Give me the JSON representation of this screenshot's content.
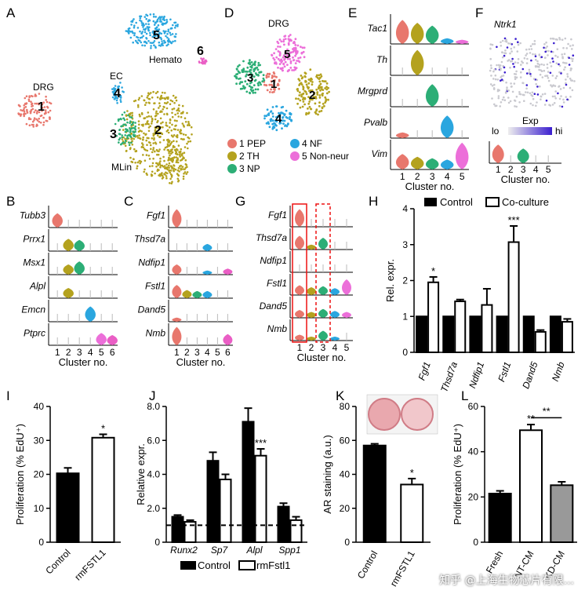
{
  "colors": {
    "c1": "#e8776d",
    "c2": "#b4a21e",
    "c3": "#2cae76",
    "c4": "#2aa6df",
    "c5": "#ec6fd9",
    "c6": "#ea5ec5",
    "black": "#000000",
    "grey": "#999999"
  },
  "panel_letters": [
    "A",
    "B",
    "C",
    "D",
    "E",
    "F",
    "G",
    "H",
    "I",
    "J",
    "K",
    "L"
  ],
  "panelA": {
    "cluster_numbers": [
      "1",
      "2",
      "3",
      "4",
      "5",
      "6"
    ],
    "labels": {
      "drg": "DRG",
      "ec": "EC",
      "hemato": "Hemato",
      "mlin": "MLin"
    }
  },
  "panelD": {
    "title": "DRG",
    "cluster_numbers": [
      "1",
      "2",
      "3",
      "4",
      "5"
    ],
    "legend": [
      {
        "num": "1",
        "name": "PEP"
      },
      {
        "num": "2",
        "name": "TH"
      },
      {
        "num": "3",
        "name": "NP"
      },
      {
        "num": "4",
        "name": "NF"
      },
      {
        "num": "5",
        "name": "Non-neur"
      }
    ]
  },
  "panelB": {
    "genes": [
      "Tubb3",
      "Prrx1",
      "Msx1",
      "Alpl",
      "Emcn",
      "Ptprc"
    ],
    "clusters": [
      "1",
      "2",
      "3",
      "4",
      "5",
      "6"
    ],
    "xlabel": "Cluster no."
  },
  "panelC": {
    "genes": [
      "Fgf1",
      "Thsd7a",
      "Ndfip1",
      "Fstl1",
      "Dand5",
      "Nmb"
    ],
    "clusters": [
      "1",
      "2",
      "3",
      "4",
      "5",
      "6"
    ],
    "xlabel": "Cluster no."
  },
  "panelE": {
    "genes": [
      "Tac1",
      "Th",
      "Mrgprd",
      "Pvalb",
      "Vim"
    ],
    "clusters": [
      "1",
      "2",
      "3",
      "4",
      "5"
    ],
    "xlabel": "Cluster no."
  },
  "panelF": {
    "gene": "Ntrk1",
    "colorbar": {
      "title": "Exp",
      "lo": "lo",
      "hi": "hi"
    },
    "clusters": [
      "1",
      "2",
      "3",
      "4",
      "5"
    ],
    "xlabel": "Cluster no."
  },
  "panelG": {
    "genes": [
      "Fgf1",
      "Thsd7a",
      "Ndfip1",
      "Fstl1",
      "Dand5",
      "Nmb"
    ],
    "clusters": [
      "1",
      "2",
      "3",
      "4",
      "5"
    ],
    "xlabel": "Cluster no."
  },
  "chart_data": [
    {
      "panel": "H",
      "type": "bar",
      "categories": [
        "Fgf1",
        "Thsd7a",
        "Ndfip1",
        "Fstl1",
        "Dand5",
        "Nmb"
      ],
      "series": [
        {
          "name": "Control",
          "values": [
            1,
            1,
            1,
            1,
            1,
            1
          ]
        },
        {
          "name": "Co-culture",
          "values": [
            1.95,
            1.42,
            1.32,
            3.07,
            0.57,
            0.85
          ]
        }
      ],
      "errors": [
        [
          0,
          0,
          0,
          0,
          0,
          0
        ],
        [
          0.15,
          0.05,
          0.45,
          0.45,
          0.05,
          0.08
        ]
      ],
      "significance": [
        "*",
        "",
        "",
        "***",
        "",
        ""
      ],
      "ylabel": "Rel. expr.",
      "ylim": [
        0,
        4
      ],
      "yticks": [
        "0",
        "1",
        "2",
        "3",
        "4"
      ],
      "legend": "top"
    },
    {
      "panel": "I",
      "type": "bar",
      "categories": [
        "Control",
        "rmFSTL1"
      ],
      "values": [
        20.3,
        30.8
      ],
      "errors": [
        1.6,
        1.0
      ],
      "significance": [
        "",
        "*"
      ],
      "ylabel": "Proliferation (% EdU⁺)",
      "ylim": [
        0,
        40
      ],
      "yticks": [
        "0",
        "10",
        "20",
        "30",
        "40"
      ]
    },
    {
      "panel": "J",
      "type": "bar",
      "categories": [
        "Runx2",
        "Sp7",
        "Alpl",
        "Spp1"
      ],
      "series": [
        {
          "name": "Control",
          "values": [
            1.5,
            4.8,
            7.1,
            2.1
          ]
        },
        {
          "name": "rmFstl1",
          "values": [
            1.2,
            3.7,
            5.1,
            1.3
          ]
        }
      ],
      "errors": [
        [
          0.1,
          0.5,
          0.8,
          0.2
        ],
        [
          0.1,
          0.3,
          0.4,
          0.2
        ]
      ],
      "significance": [
        "",
        "",
        "***",
        ""
      ],
      "reference_line": 1,
      "ylabel": "Relative expr.",
      "ylim": [
        0,
        8
      ],
      "yticks": [
        "0",
        "2.0",
        "4.0",
        "6.0",
        "8.0"
      ],
      "legend": "bottom"
    },
    {
      "panel": "K",
      "type": "bar",
      "categories": [
        "Control",
        "rmFSTL1"
      ],
      "values": [
        57,
        34
      ],
      "errors": [
        1,
        3.5
      ],
      "significance": [
        "",
        "*"
      ],
      "ylabel": "AR staining (a.u.)",
      "ylim": [
        0,
        80
      ],
      "yticks": [
        "0",
        "20",
        "40",
        "60",
        "80"
      ]
    },
    {
      "panel": "L",
      "type": "bar",
      "categories": [
        "Fresh",
        "NT-CM",
        "KD-CM"
      ],
      "values": [
        21.5,
        49.5,
        25.2
      ],
      "errors": [
        1.2,
        2.5,
        1.5
      ],
      "significance": [
        "",
        "**",
        ""
      ],
      "bracket_label": "**",
      "ylabel": "Proliferation (% EdU⁺)",
      "ylim": [
        0,
        60
      ],
      "yticks": [
        "0",
        "20",
        "40",
        "60"
      ]
    }
  ],
  "watermark": "知乎 @上海生物芯片有限..."
}
